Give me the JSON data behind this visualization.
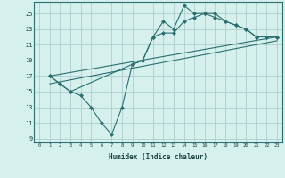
{
  "xlabel": "Humidex (Indice chaleur)",
  "ylabel": "",
  "xlim": [
    -0.5,
    23.5
  ],
  "ylim": [
    8.5,
    26.5
  ],
  "xticks": [
    0,
    1,
    2,
    3,
    4,
    5,
    6,
    7,
    8,
    9,
    10,
    11,
    12,
    13,
    14,
    15,
    16,
    17,
    18,
    19,
    20,
    21,
    22,
    23
  ],
  "yticks": [
    9,
    11,
    13,
    15,
    17,
    19,
    21,
    23,
    25
  ],
  "background_color": "#d6f0ee",
  "grid_color": "#b0cece",
  "line_color": "#2a7070",
  "lines": [
    {
      "x": [
        1,
        2,
        3,
        4,
        5,
        6,
        7,
        8,
        9,
        10,
        11,
        12,
        13,
        14,
        15,
        16,
        17,
        18,
        19,
        20,
        21,
        22,
        23
      ],
      "y": [
        17,
        16,
        15,
        14.5,
        13,
        11,
        9.5,
        13,
        18.5,
        19,
        22,
        24,
        23,
        26,
        25,
        25,
        25,
        24,
        23.5,
        23,
        22,
        22,
        22
      ],
      "marker": "D",
      "linewidth": 0.8,
      "markersize": 2.0
    },
    {
      "x": [
        1,
        2,
        3,
        9,
        10,
        11,
        12,
        13,
        14,
        15,
        16,
        17,
        18,
        19,
        20,
        21,
        22,
        23
      ],
      "y": [
        17,
        16,
        15,
        18.5,
        19,
        22,
        22.5,
        22.5,
        24,
        24.5,
        25,
        24.5,
        24,
        23.5,
        23,
        22,
        22,
        22
      ],
      "marker": "D",
      "linewidth": 0.8,
      "markersize": 2.0
    },
    {
      "x": [
        1,
        23
      ],
      "y": [
        16,
        21.5
      ],
      "marker": null,
      "linewidth": 0.8,
      "markersize": 0
    },
    {
      "x": [
        1,
        23
      ],
      "y": [
        17,
        22
      ],
      "marker": null,
      "linewidth": 0.8,
      "markersize": 0
    }
  ]
}
